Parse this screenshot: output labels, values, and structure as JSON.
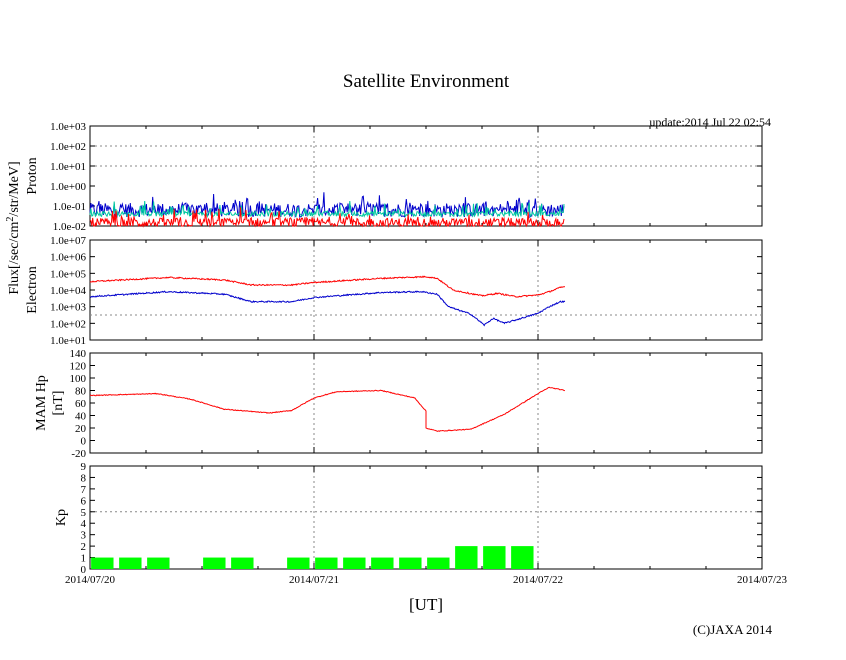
{
  "title": "Satellite Environment",
  "update": "update:2014 Jul 22 02:54",
  "copyright": "(C)JAXA 2014",
  "xaxis_label": "[UT]",
  "flux_axis_label": "Flux[/sec/cm2/str/MeV]",
  "colors": {
    "red": "#ff0000",
    "blue": "#0000cc",
    "green": "#00c8a0",
    "kp_bar": "#00ff00",
    "grid": "#888888"
  },
  "chart_data": [
    {
      "id": "proton",
      "type": "line",
      "ylabel": "Proton",
      "yscale": "log",
      "ylim": [
        -2,
        3
      ],
      "yticks": [
        "1.0e-02",
        "1.0e-01",
        "1.0e+00",
        "1.0e+01",
        "1.0e+02",
        "1.0e+03"
      ],
      "grid_lines": [
        1,
        2
      ],
      "x_end_days": 2.12,
      "series": [
        {
          "name": "blue",
          "color": "#0000cc",
          "log_level": -1.2,
          "noise": 0.35
        },
        {
          "name": "green",
          "color": "#00c8a0",
          "log_level": -1.4,
          "noise": 0.12
        },
        {
          "name": "red",
          "color": "#ff0000",
          "log_level": -1.85,
          "noise": 0.25
        }
      ]
    },
    {
      "id": "electron",
      "type": "line",
      "ylabel": "Electron",
      "yscale": "log",
      "ylim": [
        1,
        7
      ],
      "yticks": [
        "1.0e+01",
        "1.0e+02",
        "1.0e+03",
        "1.0e+04",
        "1.0e+05",
        "1.0e+06",
        "1.0e+07"
      ],
      "grid_lines": [
        2.5
      ],
      "series": [
        {
          "name": "red",
          "color": "#ff0000",
          "points": [
            [
              0,
              4.5
            ],
            [
              0.35,
              4.75
            ],
            [
              0.6,
              4.6
            ],
            [
              0.72,
              4.3
            ],
            [
              0.9,
              4.3
            ],
            [
              1.0,
              4.45
            ],
            [
              1.3,
              4.7
            ],
            [
              1.5,
              4.8
            ],
            [
              1.55,
              4.7
            ],
            [
              1.62,
              4.0
            ],
            [
              1.75,
              3.65
            ],
            [
              1.82,
              3.8
            ],
            [
              1.9,
              3.6
            ],
            [
              2.0,
              3.7
            ],
            [
              2.05,
              3.9
            ],
            [
              2.1,
              4.15
            ],
            [
              2.12,
              4.2
            ]
          ]
        },
        {
          "name": "blue",
          "color": "#0000cc",
          "points": [
            [
              0,
              3.6
            ],
            [
              0.35,
              3.9
            ],
            [
              0.6,
              3.75
            ],
            [
              0.72,
              3.3
            ],
            [
              0.9,
              3.3
            ],
            [
              1.0,
              3.55
            ],
            [
              1.3,
              3.85
            ],
            [
              1.48,
              3.9
            ],
            [
              1.55,
              3.75
            ],
            [
              1.6,
              3.0
            ],
            [
              1.7,
              2.55
            ],
            [
              1.76,
              1.9
            ],
            [
              1.8,
              2.3
            ],
            [
              1.85,
              2.0
            ],
            [
              1.9,
              2.2
            ],
            [
              2.0,
              2.6
            ],
            [
              2.05,
              3.0
            ],
            [
              2.1,
              3.3
            ],
            [
              2.12,
              3.3
            ]
          ]
        }
      ]
    },
    {
      "id": "hp",
      "type": "line",
      "ylabel": "MAM Hp",
      "ylabel2": "[nT]",
      "ylim": [
        -20,
        140
      ],
      "yticks": [
        "-20",
        "0",
        "20",
        "40",
        "60",
        "80",
        "100",
        "120",
        "140"
      ],
      "grid_lines": [],
      "series": [
        {
          "name": "hp",
          "color": "#ff0000",
          "points": [
            [
              0,
              72
            ],
            [
              0.3,
              75
            ],
            [
              0.45,
              66
            ],
            [
              0.6,
              50
            ],
            [
              0.8,
              44
            ],
            [
              0.9,
              48
            ],
            [
              1.0,
              68
            ],
            [
              1.1,
              78
            ],
            [
              1.3,
              80
            ],
            [
              1.45,
              68
            ],
            [
              1.5,
              47
            ],
            [
              1.5,
              20
            ],
            [
              1.55,
              15
            ],
            [
              1.7,
              18
            ],
            [
              1.85,
              42
            ],
            [
              2.0,
              75
            ],
            [
              2.05,
              85
            ],
            [
              2.12,
              80
            ]
          ]
        }
      ]
    },
    {
      "id": "kp",
      "type": "bar",
      "ylabel": "Kp",
      "ylim": [
        0,
        9
      ],
      "yticks": [
        "0",
        "1",
        "2",
        "3",
        "4",
        "5",
        "6",
        "7",
        "8",
        "9"
      ],
      "grid_lines": [
        5
      ],
      "bar_width_days": 0.1,
      "bars": [
        {
          "start": 0.0,
          "value": 1
        },
        {
          "start": 0.125,
          "value": 1
        },
        {
          "start": 0.25,
          "value": 1
        },
        {
          "start": 0.5,
          "value": 1
        },
        {
          "start": 0.625,
          "value": 1
        },
        {
          "start": 0.875,
          "value": 1
        },
        {
          "start": 1.0,
          "value": 1
        },
        {
          "start": 1.125,
          "value": 1
        },
        {
          "start": 1.25,
          "value": 1
        },
        {
          "start": 1.375,
          "value": 1
        },
        {
          "start": 1.5,
          "value": 1
        },
        {
          "start": 1.625,
          "value": 2
        },
        {
          "start": 1.75,
          "value": 2
        },
        {
          "start": 1.875,
          "value": 2
        }
      ]
    }
  ],
  "x_axis": {
    "xlim_days": [
      0,
      3
    ],
    "ticks": [
      "2014/07/20",
      "2014/07/21",
      "2014/07/22",
      "2014/07/23"
    ],
    "grid_days": [
      1,
      2
    ]
  }
}
